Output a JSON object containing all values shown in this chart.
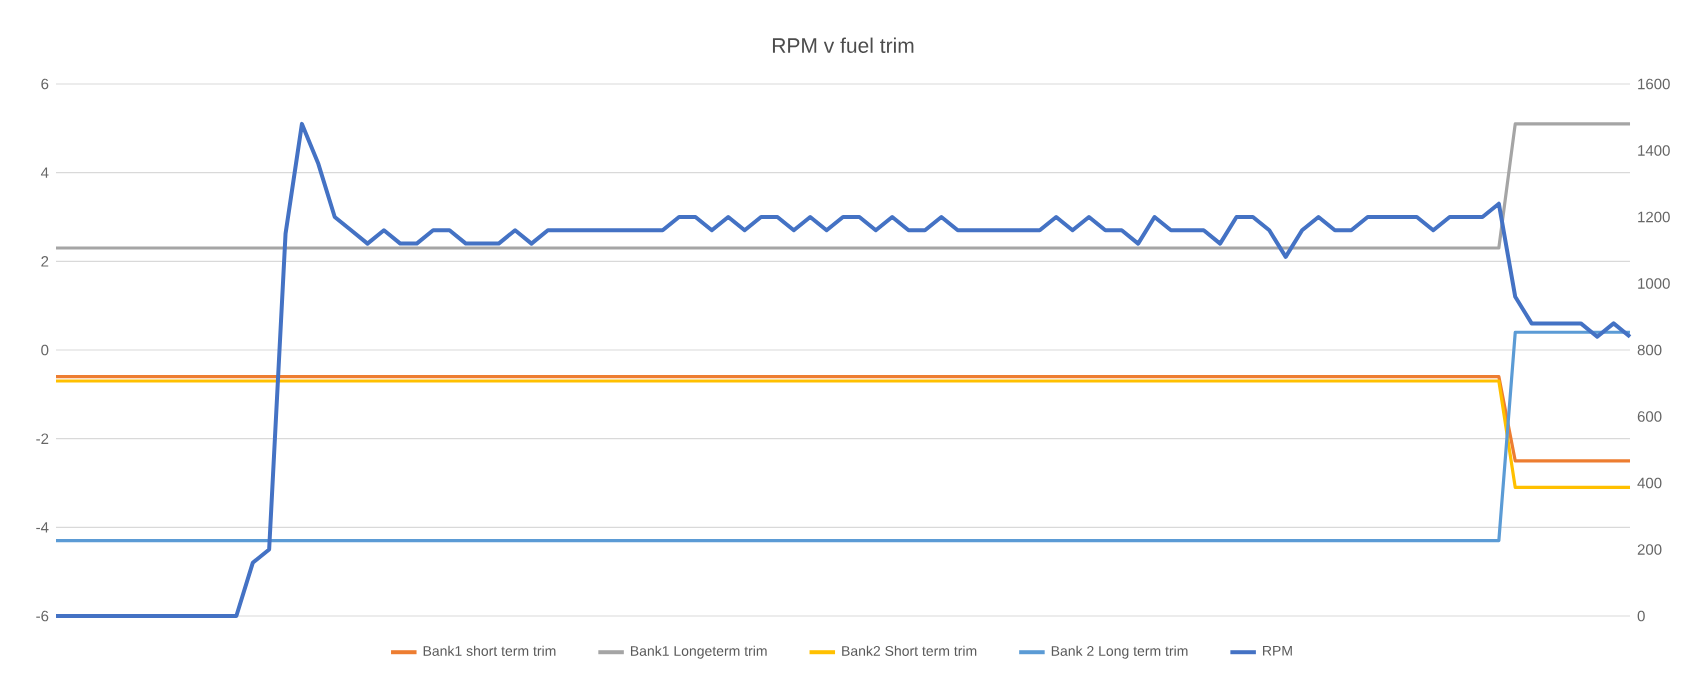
{
  "chart_data": {
    "type": "line",
    "title": "RPM v fuel trim",
    "categories": [
      null,
      null,
      null,
      null,
      null,
      null,
      null,
      null,
      null,
      null,
      null,
      null,
      null,
      null,
      null,
      null,
      null,
      null,
      null,
      null,
      null,
      null,
      null,
      null,
      null,
      null,
      null,
      null,
      null,
      null,
      null,
      null,
      null,
      null,
      null,
      null,
      null,
      null,
      null,
      null,
      null,
      null,
      null,
      null,
      null,
      null,
      null,
      null,
      null,
      null,
      null,
      null,
      null,
      null,
      null,
      null,
      null,
      null,
      null,
      null,
      null,
      null,
      null,
      null,
      null,
      null,
      null,
      null,
      null,
      null,
      null,
      null,
      null,
      null,
      null,
      null,
      null,
      null,
      null,
      null,
      null,
      null,
      null,
      null,
      null,
      null,
      null,
      null,
      null,
      null,
      null,
      null,
      null,
      null,
      null,
      null,
      null
    ],
    "series": [
      {
        "name": "Bank1 short term trim",
        "color": "#ed7d31",
        "values": [
          -0.6,
          -0.6,
          -0.6,
          -0.6,
          -0.6,
          -0.6,
          -0.6,
          -0.6,
          -0.6,
          -0.6,
          -0.6,
          -0.6,
          -0.6,
          -0.6,
          -0.6,
          -0.6,
          -0.6,
          -0.6,
          -0.6,
          -0.6,
          -0.6,
          -0.6,
          -0.6,
          -0.6,
          -0.6,
          -0.6,
          -0.6,
          -0.6,
          -0.6,
          -0.6,
          -0.6,
          -0.6,
          -0.6,
          -0.6,
          -0.6,
          -0.6,
          -0.6,
          -0.6,
          -0.6,
          -0.6,
          -0.6,
          -0.6,
          -0.6,
          -0.6,
          -0.6,
          -0.6,
          -0.6,
          -0.6,
          -0.6,
          -0.6,
          -0.6,
          -0.6,
          -0.6,
          -0.6,
          -0.6,
          -0.6,
          -0.6,
          -0.6,
          -0.6,
          -0.6,
          -0.6,
          -0.6,
          -0.6,
          -0.6,
          -0.6,
          -0.6,
          -0.6,
          -0.6,
          -0.6,
          -0.6,
          -0.6,
          -0.6,
          -0.6,
          -0.6,
          -0.6,
          -0.6,
          -0.6,
          -0.6,
          -0.6,
          -0.6,
          -0.6,
          -0.6,
          -0.6,
          -0.6,
          -0.6,
          -0.6,
          -0.6,
          -0.6,
          -0.6,
          -2.5,
          -2.5,
          -2.5,
          -2.5,
          -2.5,
          -2.5,
          -2.5,
          -2.5
        ]
      },
      {
        "name": "Bank1 Longeterm trim",
        "color": "#a5a5a5",
        "values": [
          2.3,
          2.3,
          2.3,
          2.3,
          2.3,
          2.3,
          2.3,
          2.3,
          2.3,
          2.3,
          2.3,
          2.3,
          2.3,
          2.3,
          2.3,
          2.3,
          2.3,
          2.3,
          2.3,
          2.3,
          2.3,
          2.3,
          2.3,
          2.3,
          2.3,
          2.3,
          2.3,
          2.3,
          2.3,
          2.3,
          2.3,
          2.3,
          2.3,
          2.3,
          2.3,
          2.3,
          2.3,
          2.3,
          2.3,
          2.3,
          2.3,
          2.3,
          2.3,
          2.3,
          2.3,
          2.3,
          2.3,
          2.3,
          2.3,
          2.3,
          2.3,
          2.3,
          2.3,
          2.3,
          2.3,
          2.3,
          2.3,
          2.3,
          2.3,
          2.3,
          2.3,
          2.3,
          2.3,
          2.3,
          2.3,
          2.3,
          2.3,
          2.3,
          2.3,
          2.3,
          2.3,
          2.3,
          2.3,
          2.3,
          2.3,
          2.3,
          2.3,
          2.3,
          2.3,
          2.3,
          2.3,
          2.3,
          2.3,
          2.3,
          2.3,
          2.3,
          2.3,
          2.3,
          2.3,
          5.1,
          5.1,
          5.1,
          5.1,
          5.1,
          5.1,
          5.1,
          5.1
        ]
      },
      {
        "name": "Bank2 Short term trim",
        "color": "#ffc000",
        "values": [
          -0.7,
          -0.7,
          -0.7,
          -0.7,
          -0.7,
          -0.7,
          -0.7,
          -0.7,
          -0.7,
          -0.7,
          -0.7,
          -0.7,
          -0.7,
          -0.7,
          -0.7,
          -0.7,
          -0.7,
          -0.7,
          -0.7,
          -0.7,
          -0.7,
          -0.7,
          -0.7,
          -0.7,
          -0.7,
          -0.7,
          -0.7,
          -0.7,
          -0.7,
          -0.7,
          -0.7,
          -0.7,
          -0.7,
          -0.7,
          -0.7,
          -0.7,
          -0.7,
          -0.7,
          -0.7,
          -0.7,
          -0.7,
          -0.7,
          -0.7,
          -0.7,
          -0.7,
          -0.7,
          -0.7,
          -0.7,
          -0.7,
          -0.7,
          -0.7,
          -0.7,
          -0.7,
          -0.7,
          -0.7,
          -0.7,
          -0.7,
          -0.7,
          -0.7,
          -0.7,
          -0.7,
          -0.7,
          -0.7,
          -0.7,
          -0.7,
          -0.7,
          -0.7,
          -0.7,
          -0.7,
          -0.7,
          -0.7,
          -0.7,
          -0.7,
          -0.7,
          -0.7,
          -0.7,
          -0.7,
          -0.7,
          -0.7,
          -0.7,
          -0.7,
          -0.7,
          -0.7,
          -0.7,
          -0.7,
          -0.7,
          -0.7,
          -0.7,
          -0.7,
          -3.1,
          -3.1,
          -3.1,
          -3.1,
          -3.1,
          -3.1,
          -3.1,
          -3.1
        ]
      },
      {
        "name": "Bank 2 Long term trim",
        "color": "#5b9bd5",
        "values": [
          -4.3,
          -4.3,
          -4.3,
          -4.3,
          -4.3,
          -4.3,
          -4.3,
          -4.3,
          -4.3,
          -4.3,
          -4.3,
          -4.3,
          -4.3,
          -4.3,
          -4.3,
          -4.3,
          -4.3,
          -4.3,
          -4.3,
          -4.3,
          -4.3,
          -4.3,
          -4.3,
          -4.3,
          -4.3,
          -4.3,
          -4.3,
          -4.3,
          -4.3,
          -4.3,
          -4.3,
          -4.3,
          -4.3,
          -4.3,
          -4.3,
          -4.3,
          -4.3,
          -4.3,
          -4.3,
          -4.3,
          -4.3,
          -4.3,
          -4.3,
          -4.3,
          -4.3,
          -4.3,
          -4.3,
          -4.3,
          -4.3,
          -4.3,
          -4.3,
          -4.3,
          -4.3,
          -4.3,
          -4.3,
          -4.3,
          -4.3,
          -4.3,
          -4.3,
          -4.3,
          -4.3,
          -4.3,
          -4.3,
          -4.3,
          -4.3,
          -4.3,
          -4.3,
          -4.3,
          -4.3,
          -4.3,
          -4.3,
          -4.3,
          -4.3,
          -4.3,
          -4.3,
          -4.3,
          -4.3,
          -4.3,
          -4.3,
          -4.3,
          -4.3,
          -4.3,
          -4.3,
          -4.3,
          -4.3,
          -4.3,
          -4.3,
          -4.3,
          -4.3,
          0.4,
          0.4,
          0.4,
          0.4,
          0.4,
          0.4,
          0.4,
          0.4
        ]
      },
      {
        "name": "RPM",
        "color": "#4472c4",
        "axis": "y2",
        "values": [
          0,
          0,
          0,
          0,
          0,
          0,
          0,
          0,
          0,
          0,
          0,
          0,
          160,
          200,
          1150,
          1480,
          1360,
          1200,
          1160,
          1120,
          1160,
          1120,
          1120,
          1160,
          1160,
          1120,
          1120,
          1120,
          1160,
          1120,
          1160,
          1160,
          1160,
          1160,
          1160,
          1160,
          1160,
          1160,
          1200,
          1200,
          1160,
          1200,
          1160,
          1200,
          1200,
          1160,
          1200,
          1160,
          1200,
          1200,
          1160,
          1200,
          1160,
          1160,
          1200,
          1160,
          1160,
          1160,
          1160,
          1160,
          1160,
          1200,
          1160,
          1200,
          1160,
          1160,
          1120,
          1200,
          1160,
          1160,
          1160,
          1120,
          1200,
          1200,
          1160,
          1080,
          1160,
          1200,
          1160,
          1160,
          1200,
          1200,
          1200,
          1200,
          1160,
          1200,
          1200,
          1200,
          1240,
          960,
          880,
          880,
          880,
          880,
          840,
          880,
          840
        ]
      }
    ],
    "ylim": [
      -6,
      6
    ],
    "yticks": [
      -6,
      -4,
      -2,
      0,
      2,
      4,
      6
    ],
    "y2lim": [
      0,
      1600
    ],
    "y2ticks": [
      0,
      200,
      400,
      600,
      800,
      1000,
      1200,
      1400,
      1600
    ],
    "grid": true,
    "legend": "bottom",
    "line_style": "solid",
    "marker": "none"
  }
}
